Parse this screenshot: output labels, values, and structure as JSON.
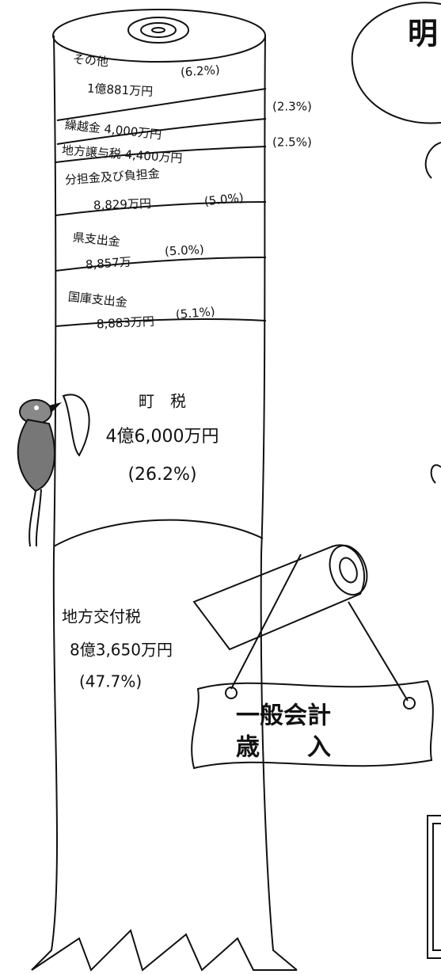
{
  "trunk": {
    "segments": [
      {
        "label": "その他",
        "amount": "1億881万円",
        "percent": "(6.2%)"
      },
      {
        "label": "繰越金 4,000万円",
        "percent": "(2.3%)"
      },
      {
        "label": "地方譲与税 4,400万円",
        "percent": "(2.5%)"
      },
      {
        "label": "分担金及び負担金",
        "amount": "8,829万円",
        "percent": "(5.0%)"
      },
      {
        "label": "県支出金",
        "amount": "8,857万",
        "percent": "(5.0%)"
      },
      {
        "label": "国庫支出金",
        "amount": "8,883万円",
        "percent": "(5.1%)"
      },
      {
        "label": "町　税",
        "amount": "4億6,000万円",
        "percent": "(26.2%)"
      },
      {
        "label": "地方交付税",
        "amount": "8億3,650万円",
        "percent": "(47.7%)"
      }
    ]
  },
  "sign": {
    "line1": "一般会計",
    "line2": "歳　　入"
  },
  "corner": {
    "title": "明"
  }
}
